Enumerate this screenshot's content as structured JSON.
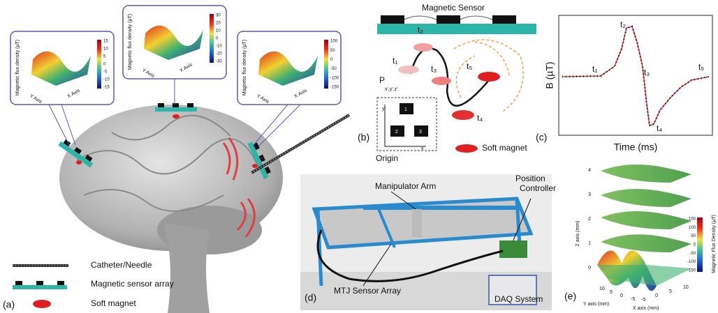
{
  "panel_a": {
    "label": "(a)",
    "plots": [
      {
        "z_label": "Magnetic flux density (µT)",
        "y_label": "Y Axis",
        "x_label": "X Axis",
        "colorbar_ticks": [
          15,
          10,
          5,
          0,
          -5,
          -10,
          -15
        ]
      },
      {
        "z_label": "Magnetic flux density (µT)",
        "y_label": "Y Axis",
        "x_label": "X Axis",
        "colorbar_ticks": [
          30,
          20,
          10,
          0,
          -10,
          -20,
          -30
        ]
      },
      {
        "z_label": "Magnetic flux density (µT)",
        "y_label": "Y Axis",
        "x_label": "X Axis",
        "colorbar_ticks": [
          100,
          50,
          0,
          -50,
          -100,
          -150
        ]
      }
    ],
    "legend": [
      "Catheter/Needle",
      "Magnetic sensor array",
      "Soft magnet"
    ]
  },
  "panel_b": {
    "label": "(b)",
    "sensor_title": "Magnetic Sensor",
    "points": [
      "t₁",
      "t₂",
      "t₃",
      "t₄",
      "t₅"
    ],
    "point_label": "P",
    "point_coords": "x',y',z'",
    "chips": [
      "1",
      "2",
      "3"
    ],
    "axis_y": "y",
    "axis_x": "x",
    "origin": "Origin",
    "magnet_legend": "Soft magnet"
  },
  "panel_c": {
    "label": "(c)",
    "y_label": "B (µT)",
    "x_label": "Time (ms)",
    "points": [
      "t₁",
      "t₂",
      "t₃",
      "t₄",
      "t₅"
    ]
  },
  "panel_d": {
    "label": "(d)",
    "callouts": [
      "Manipulator Arm",
      "Position Controller",
      "MTJ Sensor Array",
      "DAQ System"
    ]
  },
  "panel_e": {
    "label": "(e)",
    "z_label": "Z axis (mm)",
    "z_ticks": [
      0,
      1,
      2,
      3,
      4
    ],
    "y_label": "Y axis (mm)",
    "y_ticks": [
      10,
      5,
      0,
      -5
    ],
    "x_label": "X axis (mm)",
    "x_ticks": [
      -5,
      0,
      5,
      10
    ],
    "colorbar_label": "Magnetic Flux Density (µT)",
    "colorbar_ticks": [
      150,
      100,
      50,
      0,
      -50,
      -100,
      -150
    ]
  }
}
